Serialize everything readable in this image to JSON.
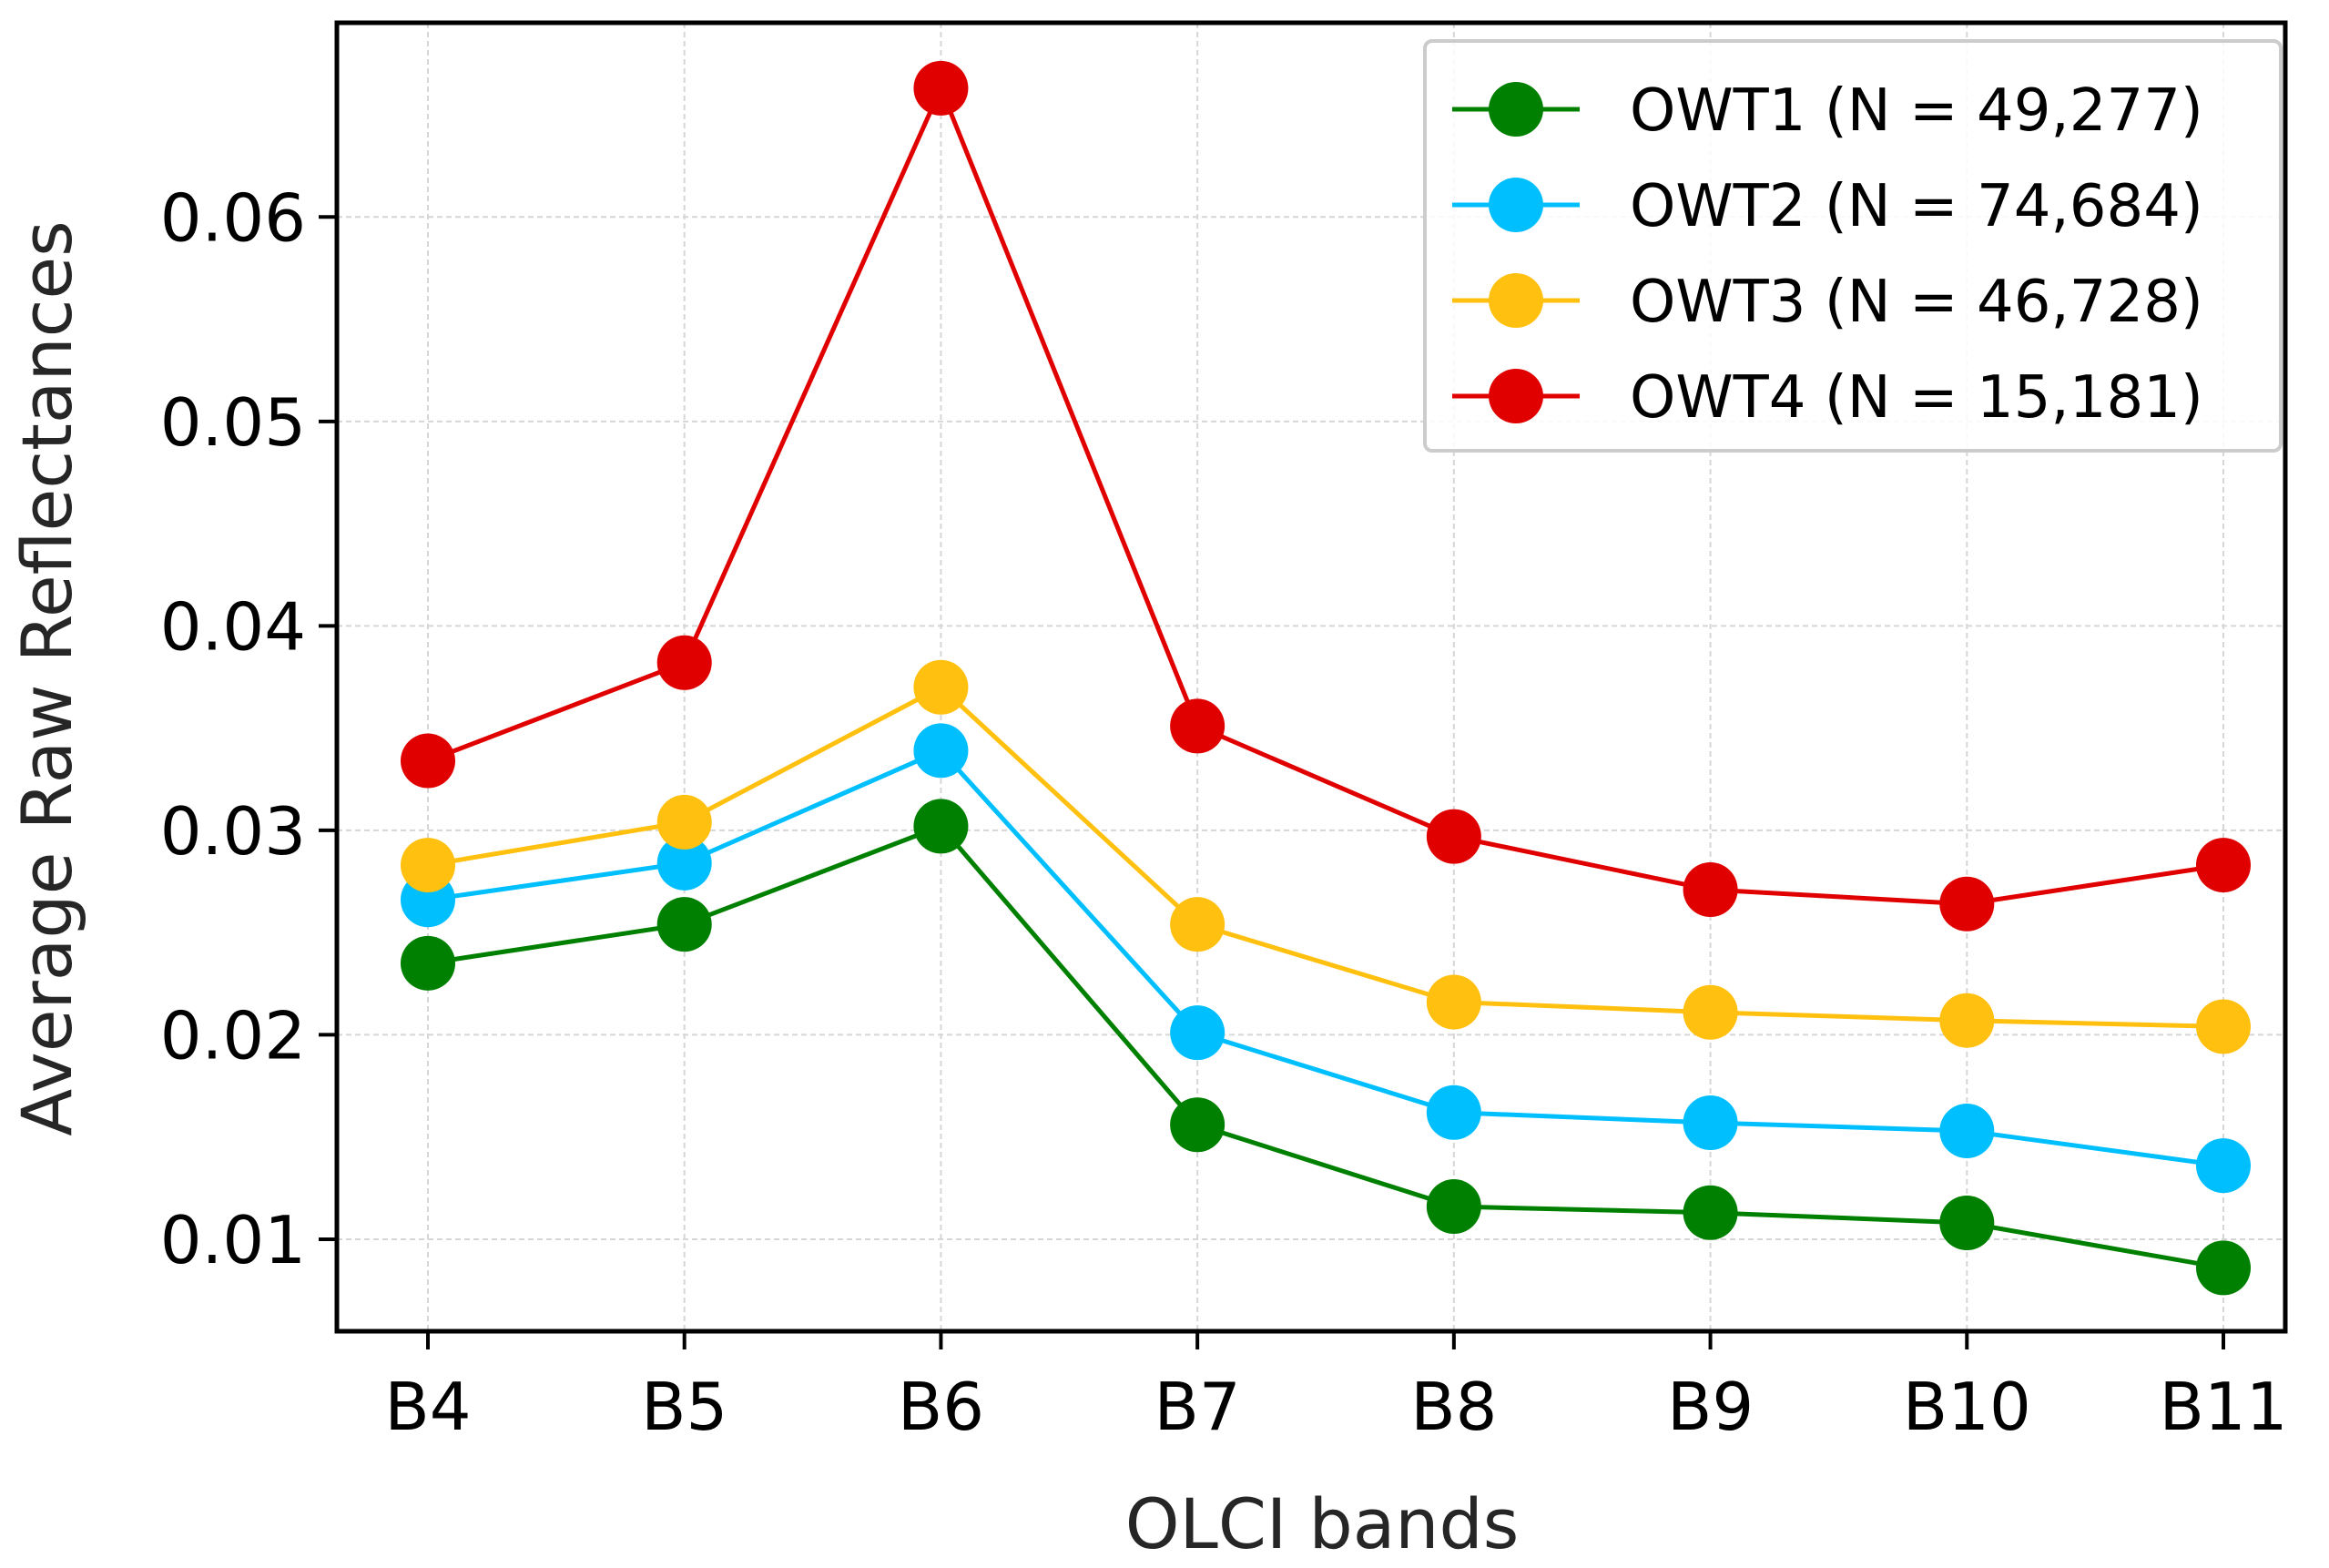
{
  "chart_data": {
    "type": "line",
    "title": "",
    "xlabel": "OLCI bands",
    "ylabel": "Average Raw Reflectances",
    "categories": [
      "B4",
      "B5",
      "B6",
      "B7",
      "B8",
      "B9",
      "B10",
      "B11"
    ],
    "y_ticks": [
      "0.01",
      "0.02",
      "0.03",
      "0.04",
      "0.05",
      "0.06"
    ],
    "ylim": [
      0.0055,
      0.0695
    ],
    "grid": true,
    "legend_position": "top-right",
    "series": [
      {
        "name": "OWT1 (N = 49,277)",
        "color": "#008000",
        "values": [
          0.0235,
          0.0254,
          0.0302,
          0.0156,
          0.0116,
          0.0113,
          0.0108,
          0.0086
        ]
      },
      {
        "name": "OWT2 (N = 74,684)",
        "color": "#00bfff",
        "values": [
          0.0266,
          0.0284,
          0.0339,
          0.0201,
          0.0162,
          0.0157,
          0.0153,
          0.0136
        ]
      },
      {
        "name": "OWT3 (N = 46,728)",
        "color": "#ffc010",
        "values": [
          0.0283,
          0.0304,
          0.037,
          0.0254,
          0.0216,
          0.0211,
          0.0207,
          0.0204
        ]
      },
      {
        "name": "OWT4 (N = 15,181)",
        "color": "#e00000",
        "values": [
          0.0334,
          0.0382,
          0.0663,
          0.0351,
          0.0297,
          0.0271,
          0.0264,
          0.0283
        ]
      }
    ]
  }
}
